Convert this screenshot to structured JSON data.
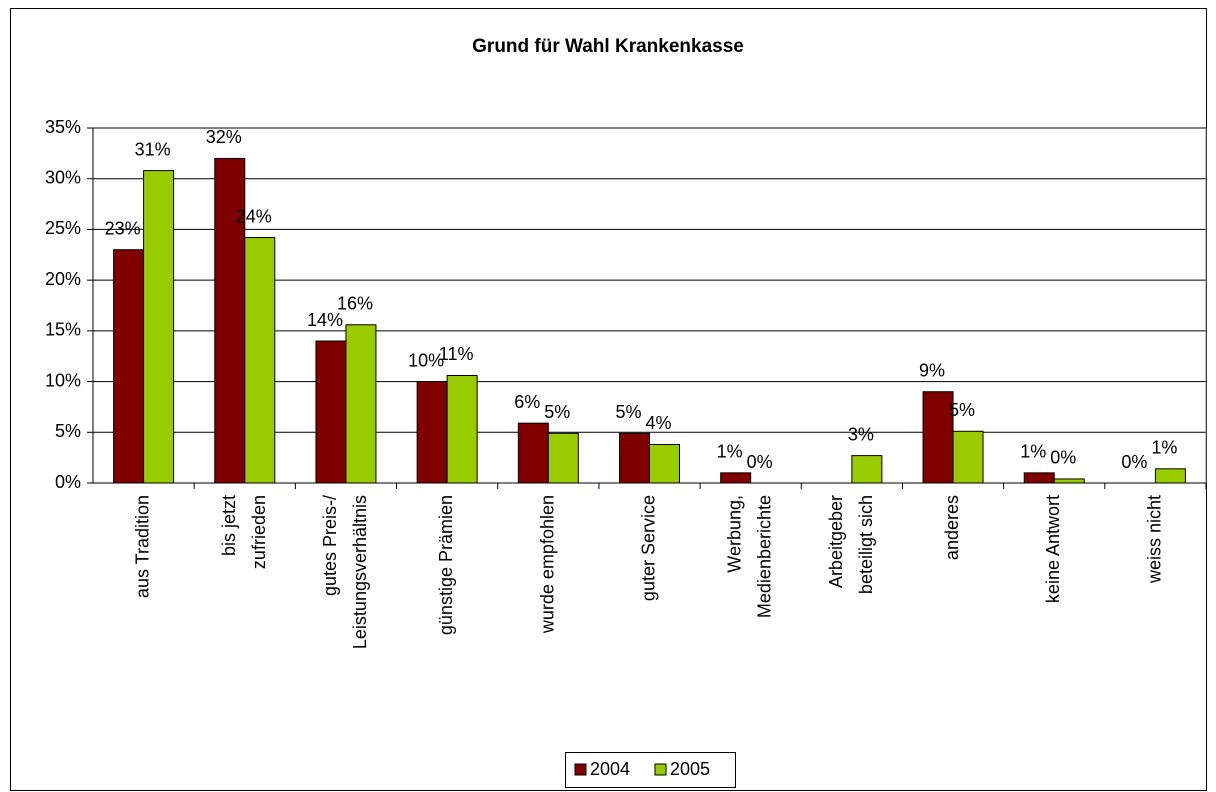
{
  "chart_data": {
    "type": "bar",
    "title": "Grund für Wahl Krankenkasse",
    "categories": [
      "aus Tradition",
      "bis jetzt\nzufrieden",
      "gutes Preis-/\nLeistungsverhältnis",
      "günstige Prämien",
      "wurde empfohlen",
      "guter Service",
      "Werbung,\nMedienberichte",
      "Arbeitgeber\nbeteiligt sich",
      "anderes",
      "keine Antwort",
      "weiss nicht"
    ],
    "series": [
      {
        "name": "2004",
        "color": "#800000",
        "values": [
          23,
          32,
          14,
          10,
          5.9,
          4.9,
          1,
          null,
          9,
          1,
          0
        ],
        "value_labels": [
          "23%",
          "32%",
          "14%",
          "10%",
          "6%",
          "5%",
          "1%",
          null,
          "9%",
          "1%",
          "0%"
        ]
      },
      {
        "name": "2005",
        "color": "#99cc00",
        "values": [
          30.8,
          24.2,
          15.6,
          10.6,
          4.9,
          3.8,
          0,
          2.7,
          5.1,
          0.4,
          1.4
        ],
        "value_labels": [
          "31%",
          "24%",
          "16%",
          "11%",
          "5%",
          "4%",
          "0%",
          "3%",
          "5%",
          "0%",
          "1%"
        ]
      }
    ],
    "ylim": [
      0,
      35
    ],
    "yticks": [
      {
        "value": 0,
        "label": "0%"
      },
      {
        "value": 5,
        "label": "5%"
      },
      {
        "value": 10,
        "label": "10%"
      },
      {
        "value": 15,
        "label": "15%"
      },
      {
        "value": 20,
        "label": "20%"
      },
      {
        "value": 25,
        "label": "25%"
      },
      {
        "value": 30,
        "label": "30%"
      },
      {
        "value": 35,
        "label": "35%"
      }
    ],
    "grid": true,
    "legend": "bottom"
  }
}
